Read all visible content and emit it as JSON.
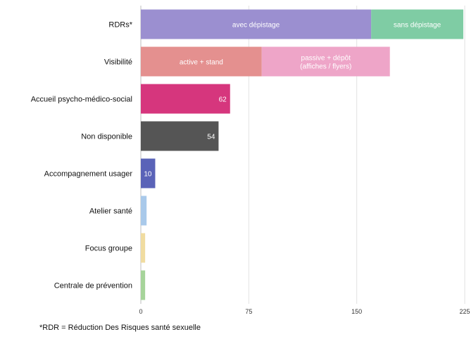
{
  "chart_data": {
    "type": "bar",
    "orientation": "horizontal",
    "stacked": true,
    "categories": [
      "RDRs*",
      "Visibilité",
      "Accueil psycho-médico-social",
      "Non disponible",
      "Accompagnement usager",
      "Atelier santé",
      "Focus groupe",
      "Centrale de prévention"
    ],
    "bars": [
      {
        "category": "RDRs*",
        "segments": [
          {
            "label": "avec dépistage",
            "value": 160,
            "color": "#9b8fd0"
          },
          {
            "label": "sans dépistage",
            "value": 64,
            "color": "#7fcca4"
          }
        ]
      },
      {
        "category": "Visibilité",
        "segments": [
          {
            "label": "active + stand",
            "value": 84,
            "color": "#e4908f"
          },
          {
            "label": "passive + dépôt (affiches / flyers)",
            "value": 89,
            "color": "#eea5c8"
          }
        ]
      },
      {
        "category": "Accueil psycho-médico-social",
        "segments": [
          {
            "label": "62",
            "value": 62,
            "color": "#d6367d"
          }
        ]
      },
      {
        "category": "Non disponible",
        "segments": [
          {
            "label": "54",
            "value": 54,
            "color": "#555555"
          }
        ]
      },
      {
        "category": "Accompagnement usager",
        "segments": [
          {
            "label": "10",
            "value": 10,
            "color": "#5a63b8"
          }
        ]
      },
      {
        "category": "Atelier santé",
        "segments": [
          {
            "label": "",
            "value": 4,
            "color": "#a9c9ea"
          }
        ]
      },
      {
        "category": "Focus groupe",
        "segments": [
          {
            "label": "",
            "value": 3,
            "color": "#f0dca0"
          }
        ]
      },
      {
        "category": "Centrale de prévention",
        "segments": [
          {
            "label": "",
            "value": 3,
            "color": "#a6d49a"
          }
        ]
      }
    ],
    "xticks": [
      0,
      75,
      150,
      225
    ],
    "xlim": [
      0,
      225
    ],
    "grid": true,
    "footnote": "*RDR = Réduction Des Risques santé sexuelle"
  }
}
